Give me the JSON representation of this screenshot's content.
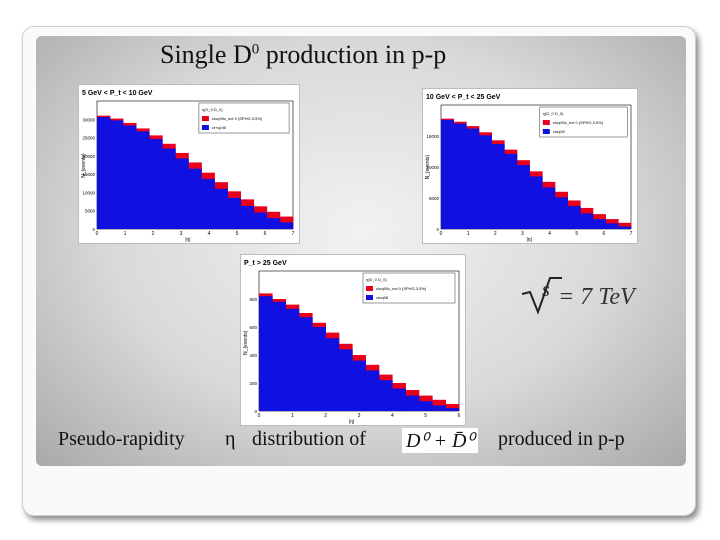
{
  "slide": {
    "title_main": "Single D",
    "title_sup": "0",
    "title_rest": " production in p-p",
    "caption_left": "Pseudo-rapidity",
    "caption_eta": "η",
    "caption_mid": "distribution of",
    "caption_right": "produced in p-p",
    "formula_particles": "D⁰ + D̄⁰",
    "energy": "= 7 TeV"
  },
  "colors": {
    "red_series": "#e8001c",
    "blue_series": "#1010e0",
    "frame": "#c8c8c8"
  },
  "chart_data": [
    {
      "type": "bar",
      "title": "5 GeV < P_t < 10 GeV",
      "ylabel": "N_{events}",
      "xlabel": "|η|",
      "xlim": [
        0,
        7
      ],
      "ylim": [
        0,
        35000
      ],
      "yticks": [
        "0",
        "5000",
        "10000",
        "15000",
        "20000",
        "25000",
        "30000"
      ],
      "xticks": [
        "0",
        "1",
        "2",
        "3",
        "4",
        "5",
        "6",
        "7"
      ],
      "legend": [
        "η(D_0 D_0)",
        "ctoq90c_ect 0 (SPHG,3.5%)",
        "ct+cj/d5"
      ],
      "series": [
        {
          "name": "ctoq90c_ect 0 (SPHG,3.5%)",
          "values": [
            31000,
            30200,
            29000,
            27500,
            25600,
            23300,
            20800,
            18200,
            15400,
            12800,
            10300,
            8100,
            6200,
            4700,
            3400
          ]
        },
        {
          "name": "ct+cj/d5",
          "values": [
            30600,
            29700,
            28300,
            26700,
            24600,
            22000,
            19300,
            16500,
            13700,
            11000,
            8500,
            6300,
            4500,
            3000,
            1800
          ]
        }
      ],
      "x": [
        0.25,
        0.75,
        1.25,
        1.75,
        2.25,
        2.75,
        3.25,
        3.75,
        4.25,
        4.75,
        5.25,
        5.75,
        6.25,
        6.75,
        7.0
      ]
    },
    {
      "type": "bar",
      "title": "10 GeV < P_t < 25 GeV",
      "ylabel": "N_{events}",
      "xlabel": "|η|",
      "xlim": [
        0,
        7
      ],
      "ylim": [
        0,
        20000
      ],
      "yticks": [
        "0",
        "5000",
        "10000",
        "15000"
      ],
      "xticks": [
        "0",
        "1",
        "2",
        "3",
        "4",
        "5",
        "6",
        "7"
      ],
      "legend": [
        "η(D_0 D_0)",
        "ctoq90c_ect 0 (SPHG,3.5%)",
        "ctoq90"
      ],
      "series": [
        {
          "name": "ctoq90c_ect 0 (SPHG,3.5%)",
          "values": [
            17800,
            17300,
            16600,
            15600,
            14300,
            12800,
            11100,
            9300,
            7600,
            6000,
            4600,
            3400,
            2400,
            1600,
            1000
          ]
        },
        {
          "name": "ctoq90",
          "values": [
            17600,
            17000,
            16200,
            15100,
            13700,
            12100,
            10300,
            8500,
            6700,
            5100,
            3700,
            2500,
            1600,
            900,
            400
          ]
        }
      ],
      "x": [
        0.25,
        0.75,
        1.25,
        1.75,
        2.25,
        2.75,
        3.25,
        3.75,
        4.25,
        4.75,
        5.25,
        5.75,
        6.25,
        6.75,
        7.0
      ]
    },
    {
      "type": "bar",
      "title": "P_t > 25 GeV",
      "ylabel": "N_{events}",
      "xlabel": "|η|",
      "xlim": [
        0,
        6
      ],
      "ylim": [
        0,
        1000
      ],
      "yticks": [
        "0",
        "200",
        "400",
        "600",
        "800"
      ],
      "xticks": [
        "0",
        "1",
        "2",
        "3",
        "4",
        "5",
        "6"
      ],
      "legend": [
        "η(D_0 D_0)",
        "ctoq90c_ect 0 (SPHG,3.5%)",
        "ctoq98"
      ],
      "series": [
        {
          "name": "ctoq90c_ect 0 (SPHG,3.5%)",
          "values": [
            840,
            800,
            760,
            700,
            630,
            560,
            480,
            400,
            330,
            260,
            200,
            150,
            110,
            80,
            50
          ]
        },
        {
          "name": "ctoq98",
          "values": [
            820,
            780,
            730,
            670,
            600,
            520,
            440,
            360,
            290,
            220,
            160,
            110,
            70,
            40,
            20
          ]
        }
      ],
      "x": [
        0.2,
        0.6,
        1.0,
        1.4,
        1.8,
        2.2,
        2.6,
        3.0,
        3.4,
        3.8,
        4.2,
        4.6,
        5.0,
        5.4,
        5.8
      ]
    }
  ]
}
